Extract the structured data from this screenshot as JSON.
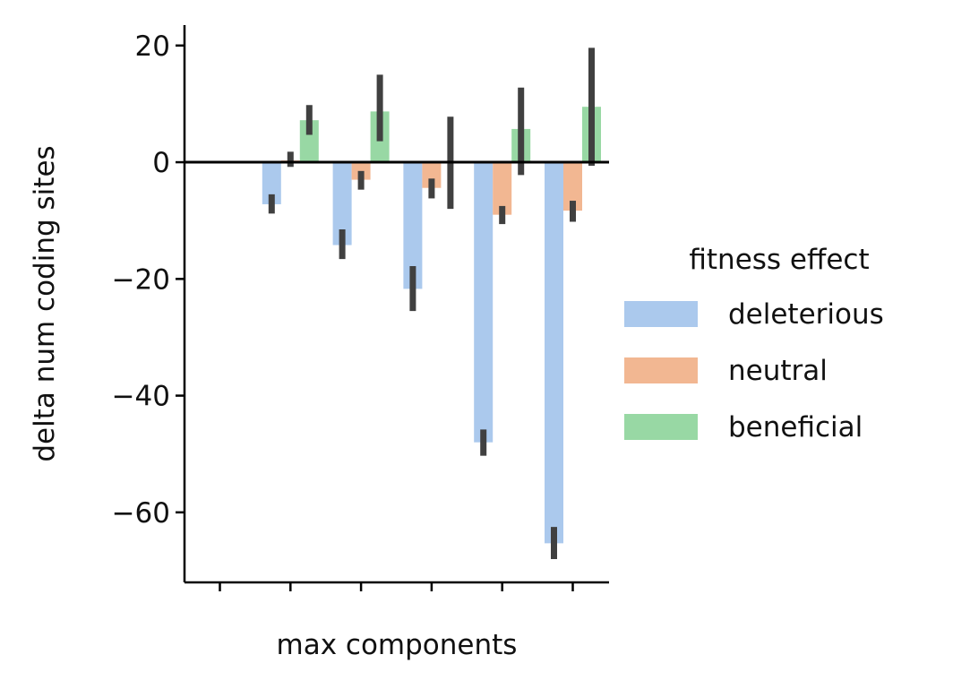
{
  "chart_data": {
    "type": "bar",
    "title": "",
    "xlabel": "max components",
    "ylabel": "delta num coding sites",
    "ylim": [
      -72,
      23.5
    ],
    "yticks": [
      20,
      0,
      -20,
      -40,
      -60
    ],
    "ytick_labels": [
      "20",
      "0",
      "−20",
      "−40",
      "−60"
    ],
    "categories": [
      "",
      "",
      "",
      "",
      "",
      ""
    ],
    "grid": false,
    "reference_line_y": 0,
    "legend": {
      "title": "fitness effect",
      "placement": "center-right outside"
    },
    "series": [
      {
        "name": "deleterious",
        "color": "#abc9ed",
        "values": [
          null,
          -7.2,
          -14.2,
          -21.7,
          -48,
          -65.3
        ],
        "ci": [
          null,
          [
            -8.8,
            -5.5
          ],
          [
            -16.6,
            -11.5
          ],
          [
            -25.5,
            -17.8
          ],
          [
            -50.3,
            -45.8
          ],
          [
            -68,
            -62.5
          ]
        ]
      },
      {
        "name": "neutral",
        "color": "#f2b792",
        "values": [
          null,
          0.3,
          -3,
          -4.4,
          -9,
          -8.3
        ],
        "ci": [
          null,
          [
            -0.8,
            1.8
          ],
          [
            -4.7,
            -1.5
          ],
          [
            -6.2,
            -2.8
          ],
          [
            -10.6,
            -7.5
          ],
          [
            -10.2,
            -6.6
          ]
        ]
      },
      {
        "name": "beneficial",
        "color": "#98d8a4",
        "values": [
          null,
          7.2,
          8.7,
          null,
          5.7,
          9.5
        ],
        "ci": [
          null,
          [
            4.7,
            9.8
          ],
          [
            3.6,
            15
          ],
          [
            -8,
            7.8
          ],
          [
            -2.2,
            12.8
          ],
          [
            -0.6,
            19.6
          ]
        ]
      }
    ],
    "colors": {
      "error_bar": "#404040",
      "axis": "#000000"
    }
  }
}
